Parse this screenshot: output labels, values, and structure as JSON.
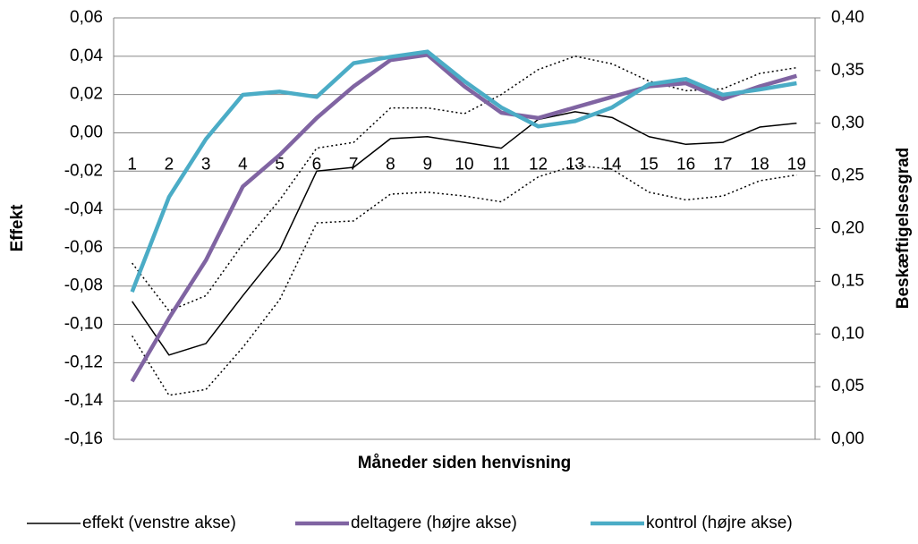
{
  "chart_data": {
    "type": "line",
    "xlabel": "Måneder siden henvisning",
    "ylabel": "Effekt",
    "y2label": "Beskæftigelsesgrad",
    "categories": [
      "1",
      "2",
      "3",
      "4",
      "5",
      "6",
      "7",
      "8",
      "9",
      "10",
      "11",
      "12",
      "13",
      "14",
      "15",
      "16",
      "17",
      "18",
      "19"
    ],
    "ylim": [
      -0.16,
      0.06
    ],
    "yticks": [
      {
        "value": -0.16,
        "label": "-0,16"
      },
      {
        "value": -0.14,
        "label": "-0,14"
      },
      {
        "value": -0.12,
        "label": "-0,12"
      },
      {
        "value": -0.1,
        "label": "-0,10"
      },
      {
        "value": -0.08,
        "label": "-0,08"
      },
      {
        "value": -0.06,
        "label": "-0,06"
      },
      {
        "value": -0.04,
        "label": "-0,04"
      },
      {
        "value": -0.02,
        "label": "-0,02"
      },
      {
        "value": 0,
        "label": "0,00"
      },
      {
        "value": 0.02,
        "label": "0,02"
      },
      {
        "value": 0.04,
        "label": "0,04"
      },
      {
        "value": 0.06,
        "label": "0,06"
      }
    ],
    "y2lim": [
      0,
      0.4
    ],
    "y2ticks": [
      {
        "value": 0,
        "label": "0,00"
      },
      {
        "value": 0.05,
        "label": "0,05"
      },
      {
        "value": 0.1,
        "label": "0,10"
      },
      {
        "value": 0.15,
        "label": "0,15"
      },
      {
        "value": 0.2,
        "label": "0,20"
      },
      {
        "value": 0.25,
        "label": "0,25"
      },
      {
        "value": 0.3,
        "label": "0,30"
      },
      {
        "value": 0.35,
        "label": "0,35"
      },
      {
        "value": 0.4,
        "label": "0,40"
      }
    ],
    "grid": true,
    "legend": "bottom",
    "series": [
      {
        "name": "effekt (venstre akse)",
        "color": "#000000",
        "width": 1.5,
        "values": [
          -0.088,
          -0.116,
          -0.11,
          -0.085,
          -0.061,
          -0.02,
          -0.018,
          -0.003,
          -0.002,
          -0.005,
          -0.008,
          0.007,
          0.011,
          0.008,
          -0.002,
          -0.006,
          -0.005,
          0.003,
          0.005
        ]
      },
      {
        "color": "#000000",
        "width": 1.5,
        "dashed": true,
        "values": [
          -0.068,
          -0.093,
          -0.085,
          -0.058,
          -0.035,
          -0.008,
          -0.005,
          0.013,
          0.013,
          0.01,
          0.02,
          0.033,
          0.04,
          0.036,
          0.027,
          0.022,
          0.023,
          0.031,
          0.034
        ]
      },
      {
        "color": "#000000",
        "width": 1.5,
        "dashed": true,
        "values": [
          -0.106,
          -0.137,
          -0.134,
          -0.112,
          -0.087,
          -0.047,
          -0.046,
          -0.032,
          -0.031,
          -0.033,
          -0.036,
          -0.023,
          -0.017,
          -0.019,
          -0.031,
          -0.035,
          -0.033,
          -0.025,
          -0.022
        ]
      },
      {
        "name": "deltagere (højre akse)",
        "color": "#8064a2",
        "width": 4.5,
        "axis": "y2",
        "values": [
          0.055,
          0.115,
          0.17,
          0.24,
          0.27,
          0.305,
          0.335,
          0.36,
          0.365,
          0.335,
          0.31,
          0.305,
          0.315,
          0.325,
          0.335,
          0.338,
          0.323,
          0.335,
          0.345
        ]
      },
      {
        "name": "kontrol (højre akse)",
        "color": "#4bacc6",
        "width": 4.5,
        "axis": "y2",
        "values": [
          0.14,
          0.23,
          0.285,
          0.327,
          0.33,
          0.325,
          0.357,
          0.363,
          0.368,
          0.34,
          0.315,
          0.297,
          0.302,
          0.315,
          0.337,
          0.342,
          0.327,
          0.332,
          0.338
        ]
      }
    ]
  }
}
